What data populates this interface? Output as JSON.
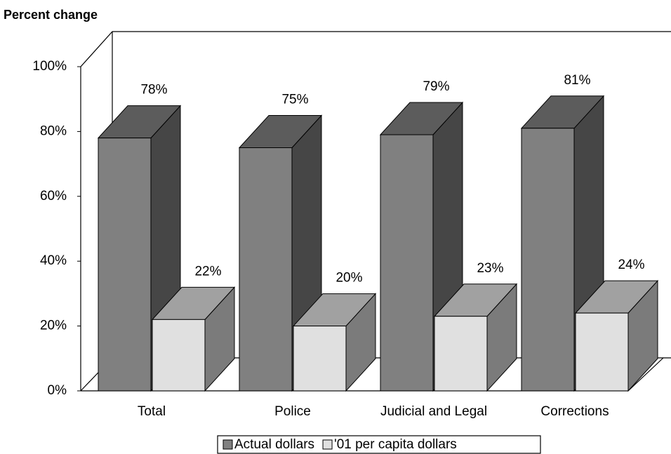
{
  "chart_data": {
    "type": "bar3d",
    "title": "Percent change",
    "categories": [
      "Total",
      "Police",
      "Judicial and Legal",
      "Corrections"
    ],
    "series": [
      {
        "name": "Actual dollars",
        "color": "#808080",
        "values": [
          78,
          75,
          79,
          81
        ],
        "value_labels": [
          "78%",
          "75%",
          "79%",
          "81%"
        ]
      },
      {
        "name": "'01 per capita dollars",
        "color": "#e0e0e0",
        "values": [
          22,
          20,
          23,
          24
        ],
        "value_labels": [
          "22%",
          "20%",
          "23%",
          "24%"
        ]
      }
    ],
    "ylim": [
      0,
      100
    ],
    "yticks": [
      {
        "value": 0,
        "label": "0%"
      },
      {
        "value": 20,
        "label": "20%"
      },
      {
        "value": 40,
        "label": "40%"
      },
      {
        "value": 60,
        "label": "60%"
      },
      {
        "value": 80,
        "label": "80%"
      },
      {
        "value": 100,
        "label": "100%"
      }
    ],
    "grid": false,
    "legend": "bottom"
  }
}
